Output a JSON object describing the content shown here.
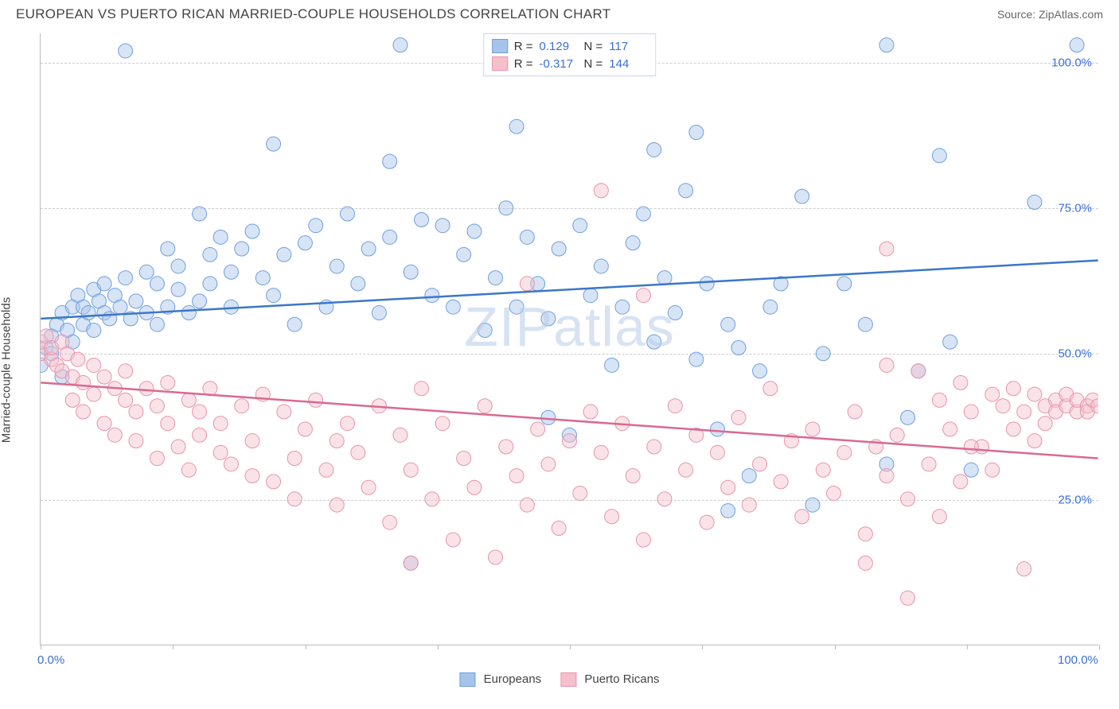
{
  "header": {
    "title": "EUROPEAN VS PUERTO RICAN MARRIED-COUPLE HOUSEHOLDS CORRELATION CHART",
    "source_prefix": "Source: ",
    "source_name": "ZipAtlas.com"
  },
  "ylabel": "Married-couple Households",
  "watermark": "ZIPatlas",
  "chart": {
    "type": "scatter",
    "xlim": [
      0,
      100
    ],
    "ylim": [
      0,
      105
    ],
    "ytick_values": [
      25,
      50,
      75,
      100
    ],
    "ytick_labels": [
      "25.0%",
      "50.0%",
      "75.0%",
      "100.0%"
    ],
    "xtick_values": [
      0,
      12.5,
      25,
      37.5,
      50,
      62.5,
      75,
      87.5,
      100
    ],
    "xtick_label_left": "0.0%",
    "xtick_label_right": "100.0%",
    "background_color": "#ffffff",
    "grid_color": "#cccccc",
    "axis_color": "#bbbbbb",
    "marker_radius": 9,
    "marker_opacity": 0.45,
    "line_width": 2.5,
    "series": [
      {
        "name": "Europeans",
        "fill_color": "#a6c4ea",
        "stroke_color": "#6ea0de",
        "line_color": "#3b77c9",
        "R": "0.129",
        "N": "117",
        "trend": {
          "x1": 0,
          "y1": 56,
          "x2": 100,
          "y2": 66
        },
        "points": [
          [
            0,
            48
          ],
          [
            0.5,
            51
          ],
          [
            1,
            50
          ],
          [
            1,
            53
          ],
          [
            1.5,
            55
          ],
          [
            2,
            57
          ],
          [
            2,
            46
          ],
          [
            2.5,
            54
          ],
          [
            3,
            58
          ],
          [
            3,
            52
          ],
          [
            3.5,
            60
          ],
          [
            4,
            55
          ],
          [
            4,
            58
          ],
          [
            4.5,
            57
          ],
          [
            5,
            61
          ],
          [
            5,
            54
          ],
          [
            5.5,
            59
          ],
          [
            6,
            57
          ],
          [
            6,
            62
          ],
          [
            6.5,
            56
          ],
          [
            7,
            60
          ],
          [
            7.5,
            58
          ],
          [
            8,
            102
          ],
          [
            8,
            63
          ],
          [
            8.5,
            56
          ],
          [
            9,
            59
          ],
          [
            10,
            57
          ],
          [
            10,
            64
          ],
          [
            11,
            62
          ],
          [
            11,
            55
          ],
          [
            12,
            68
          ],
          [
            12,
            58
          ],
          [
            13,
            61
          ],
          [
            13,
            65
          ],
          [
            14,
            57
          ],
          [
            15,
            74
          ],
          [
            15,
            59
          ],
          [
            16,
            67
          ],
          [
            16,
            62
          ],
          [
            17,
            70
          ],
          [
            18,
            58
          ],
          [
            18,
            64
          ],
          [
            19,
            68
          ],
          [
            20,
            71
          ],
          [
            21,
            63
          ],
          [
            22,
            86
          ],
          [
            22,
            60
          ],
          [
            23,
            67
          ],
          [
            24,
            55
          ],
          [
            25,
            69
          ],
          [
            26,
            72
          ],
          [
            27,
            58
          ],
          [
            28,
            65
          ],
          [
            29,
            74
          ],
          [
            30,
            62
          ],
          [
            31,
            68
          ],
          [
            32,
            57
          ],
          [
            33,
            83
          ],
          [
            33,
            70
          ],
          [
            34,
            103
          ],
          [
            35,
            64
          ],
          [
            35,
            14
          ],
          [
            36,
            73
          ],
          [
            37,
            60
          ],
          [
            38,
            72
          ],
          [
            39,
            58
          ],
          [
            40,
            67
          ],
          [
            41,
            71
          ],
          [
            42,
            54
          ],
          [
            43,
            63
          ],
          [
            44,
            75
          ],
          [
            45,
            89
          ],
          [
            45,
            58
          ],
          [
            46,
            70
          ],
          [
            47,
            62
          ],
          [
            48,
            39
          ],
          [
            48,
            56
          ],
          [
            49,
            68
          ],
          [
            50,
            36
          ],
          [
            50,
            103
          ],
          [
            51,
            72
          ],
          [
            52,
            60
          ],
          [
            53,
            65
          ],
          [
            54,
            48
          ],
          [
            55,
            58
          ],
          [
            56,
            69
          ],
          [
            57,
            74
          ],
          [
            58,
            85
          ],
          [
            58,
            52
          ],
          [
            59,
            63
          ],
          [
            60,
            57
          ],
          [
            61,
            78
          ],
          [
            62,
            88
          ],
          [
            62,
            49
          ],
          [
            63,
            62
          ],
          [
            64,
            37
          ],
          [
            65,
            23
          ],
          [
            65,
            55
          ],
          [
            66,
            51
          ],
          [
            67,
            29
          ],
          [
            68,
            47
          ],
          [
            69,
            58
          ],
          [
            70,
            62
          ],
          [
            72,
            77
          ],
          [
            73,
            24
          ],
          [
            74,
            50
          ],
          [
            76,
            62
          ],
          [
            78,
            55
          ],
          [
            80,
            103
          ],
          [
            80,
            31
          ],
          [
            82,
            39
          ],
          [
            83,
            47
          ],
          [
            85,
            84
          ],
          [
            86,
            52
          ],
          [
            88,
            30
          ],
          [
            94,
            76
          ],
          [
            98,
            103
          ]
        ]
      },
      {
        "name": "Puerto Ricans",
        "fill_color": "#f4c0cc",
        "stroke_color": "#e893ab",
        "line_color": "#d96a8f",
        "R": "-0.317",
        "N": "144",
        "trend": {
          "x1": 0,
          "y1": 45,
          "x2": 100,
          "y2": 32
        },
        "points": [
          [
            0,
            50
          ],
          [
            0,
            52
          ],
          [
            0.5,
            53
          ],
          [
            1,
            49
          ],
          [
            1,
            51
          ],
          [
            1.5,
            48
          ],
          [
            2,
            47
          ],
          [
            2,
            52
          ],
          [
            2.5,
            50
          ],
          [
            3,
            46
          ],
          [
            3,
            42
          ],
          [
            3.5,
            49
          ],
          [
            4,
            45
          ],
          [
            4,
            40
          ],
          [
            5,
            48
          ],
          [
            5,
            43
          ],
          [
            6,
            38
          ],
          [
            6,
            46
          ],
          [
            7,
            44
          ],
          [
            7,
            36
          ],
          [
            8,
            42
          ],
          [
            8,
            47
          ],
          [
            9,
            35
          ],
          [
            9,
            40
          ],
          [
            10,
            44
          ],
          [
            11,
            41
          ],
          [
            11,
            32
          ],
          [
            12,
            45
          ],
          [
            12,
            38
          ],
          [
            13,
            34
          ],
          [
            14,
            42
          ],
          [
            14,
            30
          ],
          [
            15,
            40
          ],
          [
            15,
            36
          ],
          [
            16,
            44
          ],
          [
            17,
            33
          ],
          [
            17,
            38
          ],
          [
            18,
            31
          ],
          [
            19,
            41
          ],
          [
            20,
            29
          ],
          [
            20,
            35
          ],
          [
            21,
            43
          ],
          [
            22,
            28
          ],
          [
            23,
            40
          ],
          [
            24,
            32
          ],
          [
            24,
            25
          ],
          [
            25,
            37
          ],
          [
            26,
            42
          ],
          [
            27,
            30
          ],
          [
            28,
            24
          ],
          [
            28,
            35
          ],
          [
            29,
            38
          ],
          [
            30,
            33
          ],
          [
            31,
            27
          ],
          [
            32,
            41
          ],
          [
            33,
            21
          ],
          [
            34,
            36
          ],
          [
            35,
            14
          ],
          [
            35,
            30
          ],
          [
            36,
            44
          ],
          [
            37,
            25
          ],
          [
            38,
            38
          ],
          [
            39,
            18
          ],
          [
            40,
            32
          ],
          [
            41,
            27
          ],
          [
            42,
            41
          ],
          [
            43,
            15
          ],
          [
            44,
            34
          ],
          [
            45,
            29
          ],
          [
            46,
            62
          ],
          [
            46,
            24
          ],
          [
            47,
            37
          ],
          [
            48,
            31
          ],
          [
            49,
            20
          ],
          [
            50,
            35
          ],
          [
            51,
            26
          ],
          [
            52,
            40
          ],
          [
            53,
            78
          ],
          [
            53,
            33
          ],
          [
            54,
            22
          ],
          [
            55,
            38
          ],
          [
            56,
            29
          ],
          [
            57,
            60
          ],
          [
            57,
            18
          ],
          [
            58,
            34
          ],
          [
            59,
            25
          ],
          [
            60,
            41
          ],
          [
            61,
            30
          ],
          [
            62,
            36
          ],
          [
            63,
            21
          ],
          [
            64,
            33
          ],
          [
            65,
            27
          ],
          [
            66,
            39
          ],
          [
            67,
            24
          ],
          [
            68,
            31
          ],
          [
            69,
            44
          ],
          [
            70,
            28
          ],
          [
            71,
            35
          ],
          [
            72,
            22
          ],
          [
            73,
            37
          ],
          [
            74,
            30
          ],
          [
            75,
            26
          ],
          [
            76,
            33
          ],
          [
            77,
            40
          ],
          [
            78,
            19
          ],
          [
            79,
            34
          ],
          [
            80,
            48
          ],
          [
            80,
            29
          ],
          [
            81,
            36
          ],
          [
            82,
            25
          ],
          [
            83,
            47
          ],
          [
            84,
            31
          ],
          [
            85,
            42
          ],
          [
            85,
            22
          ],
          [
            86,
            37
          ],
          [
            87,
            45
          ],
          [
            87,
            28
          ],
          [
            88,
            40
          ],
          [
            89,
            34
          ],
          [
            90,
            43
          ],
          [
            90,
            30
          ],
          [
            91,
            41
          ],
          [
            92,
            37
          ],
          [
            92,
            44
          ],
          [
            93,
            40
          ],
          [
            93,
            13
          ],
          [
            94,
            43
          ],
          [
            94,
            35
          ],
          [
            95,
            41
          ],
          [
            95,
            38
          ],
          [
            96,
            42
          ],
          [
            96,
            40
          ],
          [
            97,
            41
          ],
          [
            97,
            43
          ],
          [
            98,
            40
          ],
          [
            98,
            42
          ],
          [
            99,
            41
          ],
          [
            99,
            40
          ],
          [
            99.5,
            42
          ],
          [
            100,
            41
          ],
          [
            82,
            8
          ],
          [
            80,
            68
          ],
          [
            78,
            14
          ],
          [
            88,
            34
          ]
        ]
      }
    ]
  },
  "legend_bottom": [
    {
      "label": "Europeans",
      "fill": "#a6c4ea",
      "stroke": "#6ea0de"
    },
    {
      "label": "Puerto Ricans",
      "fill": "#f4c0cc",
      "stroke": "#e893ab"
    }
  ]
}
